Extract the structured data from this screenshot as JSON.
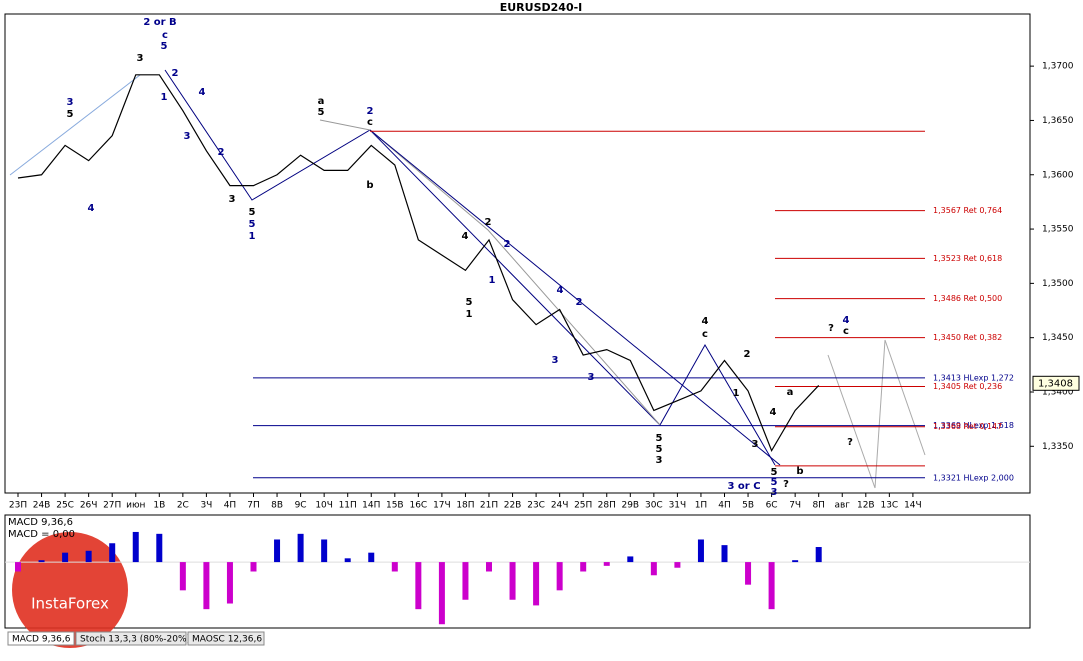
{
  "chart_data": [
    {
      "type": "line",
      "title": "EURUSD240-I",
      "categories": [
        "23П",
        "24В",
        "25С",
        "26Ч",
        "27П",
        "июн",
        "1В",
        "2С",
        "3Ч",
        "4П",
        "7П",
        "8В",
        "9С",
        "10Ч",
        "11П",
        "14П",
        "15В",
        "16С",
        "17Ч",
        "18П",
        "21П",
        "22В",
        "23С",
        "24Ч",
        "25П",
        "28П",
        "29В",
        "30С",
        "31Ч",
        "1П",
        "4П",
        "5В",
        "6С",
        "7Ч",
        "8П",
        "авг",
        "12В",
        "13С",
        "14Ч"
      ],
      "series": [
        {
          "name": "EURUSD240-I",
          "color": "#000000",
          "values": [
            1.3597,
            1.36,
            1.3627,
            1.3613,
            1.3636,
            1.3692,
            1.3692,
            1.3659,
            1.3622,
            1.359,
            1.359,
            1.36,
            1.3618,
            1.3604,
            1.3604,
            1.3627,
            1.3609,
            1.354,
            1.3526,
            1.3512,
            1.354,
            1.3485,
            1.3462,
            1.3476,
            1.3434,
            1.3439,
            1.3429,
            1.3383,
            1.3392,
            1.3401,
            1.3429,
            1.3401,
            1.3346,
            1.3383,
            1.3406,
            null,
            null,
            null,
            null
          ]
        }
      ],
      "ylim": [
        1.3307,
        1.3748
      ],
      "yticks": [
        {
          "value": 1.335,
          "label": "1,3350"
        },
        {
          "value": 1.34,
          "label": "1,3400"
        },
        {
          "value": 1.345,
          "label": "1,3450"
        },
        {
          "value": 1.35,
          "label": "1,3500"
        },
        {
          "value": 1.355,
          "label": "1,3550"
        },
        {
          "value": 1.36,
          "label": "1,3600"
        },
        {
          "value": 1.365,
          "label": "1,3650"
        },
        {
          "value": 1.37,
          "label": "1,3700"
        }
      ],
      "current_price": {
        "value": 1.3408,
        "label": "1,3408"
      },
      "levels": [
        {
          "value": 1.364,
          "color": "#cc0000"
        },
        {
          "value": 1.3567,
          "label": "1,3567 Ret 0,764",
          "color": "#cc0000"
        },
        {
          "value": 1.3523,
          "label": "1,3523 Ret 0,618",
          "color": "#cc0000"
        },
        {
          "value": 1.3486,
          "label": "1,3486 Ret 0,500",
          "color": "#cc0000"
        },
        {
          "value": 1.345,
          "label": "1,3450 Ret 0,382",
          "color": "#cc0000"
        },
        {
          "value": 1.3413,
          "label": "1,3413 HLexp 1,272",
          "color": "#00008b"
        },
        {
          "value": 1.3405,
          "label": "1,3405 Ret 0,236",
          "color": "#cc0000"
        },
        {
          "value": 1.3369,
          "label": "1,3369 HLexp 1,618",
          "color": "#00008b"
        },
        {
          "value": 1.3368,
          "label": "1,3368 Ret 0,147",
          "color": "#cc0000"
        },
        {
          "value": 1.3332,
          "color": "#cc0000"
        },
        {
          "value": 1.3321,
          "label": "1,3321 HLexp 2,000",
          "color": "#00008b"
        }
      ],
      "annotations": [
        "2 or B",
        "c",
        "5",
        "3",
        "5",
        "4",
        "3",
        "1",
        "2",
        "4",
        "3",
        "2",
        "3",
        "5",
        "5",
        "1",
        "a",
        "5",
        "2",
        "c",
        "b",
        "2",
        "1",
        "5",
        "1",
        "4",
        "2",
        "4",
        "2",
        "3",
        "3",
        "5",
        "5",
        "3",
        "4",
        "c",
        "2",
        "3 or C",
        "5",
        "5",
        "3",
        "?",
        "b",
        "a",
        "?",
        "4",
        "c",
        "?",
        "4",
        "3",
        "1"
      ]
    },
    {
      "type": "bar",
      "title": "MACD 9,36,6",
      "subtitle": "MACD = 0,00",
      "positive_color": "#0000cc",
      "negative_color": "#cc00cc",
      "values": [
        -0.0005,
        0.0001,
        0.0005,
        0.0006,
        0.001,
        0.0016,
        0.0015,
        -0.0015,
        -0.0025,
        -0.0022,
        -0.0005,
        0.0012,
        0.0015,
        0.0012,
        0.0002,
        0.0005,
        -0.0005,
        -0.0025,
        -0.0033,
        -0.002,
        -0.0005,
        -0.002,
        -0.0023,
        -0.0015,
        -0.0005,
        -0.0002,
        0.0003,
        -0.0007,
        -0.0003,
        0.0012,
        0.0009,
        -0.0012,
        -0.0025,
        0.0001,
        0.0008,
        null,
        null,
        null,
        null
      ],
      "ylim": [
        -0.0035,
        0.0025
      ]
    }
  ],
  "tabs": [
    "MACD 9,36,6",
    "Stoch 13,3,3 (80%-20%)",
    "MAOSC 12,36,6"
  ],
  "watermark": "InstaForex"
}
